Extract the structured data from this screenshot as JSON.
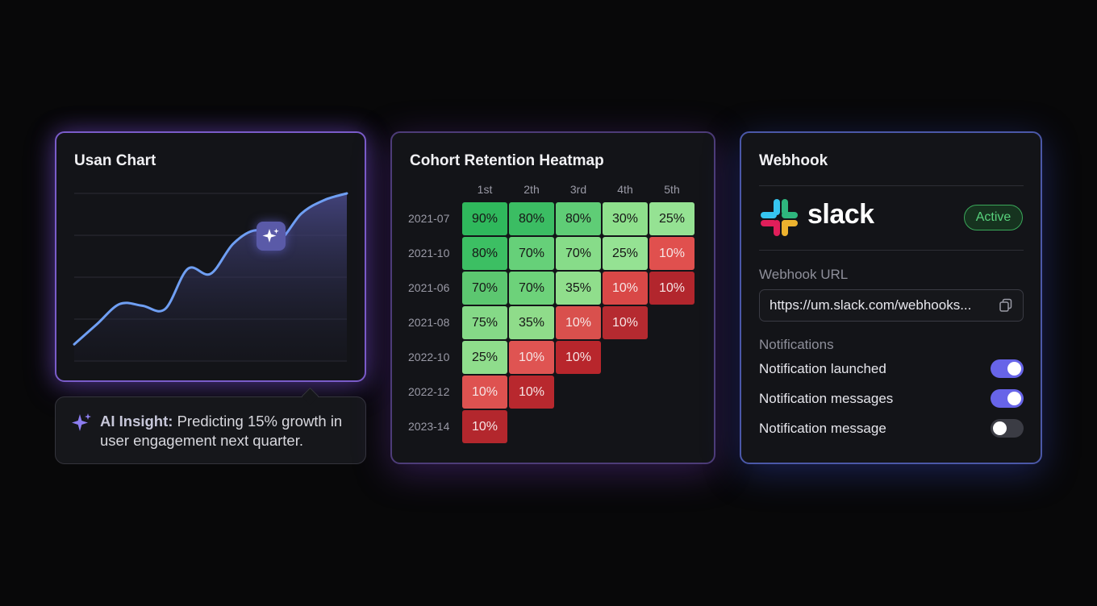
{
  "usage_card": {
    "title": "Usan Chart",
    "chart_data": {
      "type": "area",
      "x": [
        0,
        1,
        2,
        3,
        4,
        5,
        6,
        7,
        8,
        9,
        10,
        11,
        12
      ],
      "values": [
        10,
        22,
        34,
        33,
        31,
        55,
        52,
        70,
        78,
        72,
        88,
        96,
        100
      ],
      "ylim": [
        0,
        100
      ],
      "grid": true,
      "line_color": "#6f9ff3",
      "fill_color": "#3a3a6e"
    },
    "marker_icon": "sparkle-icon"
  },
  "insight": {
    "icon": "sparkle-icon",
    "label": "AI Insight:",
    "text": "Predicting 15% growth in user engagement next quarter."
  },
  "heatmap_card": {
    "title": "Cohort Retention Heatmap",
    "chart_data": {
      "type": "heatmap",
      "columns": [
        "1st",
        "2th",
        "3rd",
        "4th",
        "5th"
      ],
      "rows": [
        {
          "label": "2021-07",
          "values": [
            "90%",
            "80%",
            "80%",
            "30%",
            "25%"
          ]
        },
        {
          "label": "2021-10",
          "values": [
            "80%",
            "70%",
            "70%",
            "25%",
            "10%"
          ]
        },
        {
          "label": "2021-06",
          "values": [
            "70%",
            "70%",
            "35%",
            "10%",
            "10%"
          ]
        },
        {
          "label": "2021-08",
          "values": [
            "75%",
            "35%",
            "10%",
            "10%"
          ]
        },
        {
          "label": "2022-10",
          "values": [
            "25%",
            "10%",
            "10%"
          ]
        },
        {
          "label": "2022-12",
          "values": [
            "10%",
            "10%"
          ]
        },
        {
          "label": "2023-14",
          "values": [
            "10%"
          ]
        }
      ],
      "cell_colors": [
        [
          "#2fb85c",
          "#3bbd63",
          "#5fcd76",
          "#8ee08c",
          "#95e293"
        ],
        [
          "#3cbf63",
          "#66d079",
          "#87dc89",
          "#95e293",
          "#e0504e"
        ],
        [
          "#5cc770",
          "#6dd27a",
          "#90de8c",
          "#d94847",
          "#b2262d"
        ],
        [
          "#85d987",
          "#8fdc8a",
          "#d9504d",
          "#b52a30"
        ],
        [
          "#8fdd8c",
          "#df5452",
          "#b8262c"
        ],
        [
          "#de5250",
          "#b8282e"
        ],
        [
          "#b3272d"
        ]
      ]
    }
  },
  "webhook_card": {
    "title": "Webhook",
    "brand": "slack",
    "brand_icon": "slack-logo-icon",
    "status": "Active",
    "url_label": "Webhook URL",
    "url_value": "https://um.slack.com/webhooks...",
    "copy_icon": "copy-icon",
    "notifications_label": "Notifications",
    "notifications": [
      {
        "label": "Notification launched",
        "enabled": true
      },
      {
        "label": "Notification messages",
        "enabled": true
      },
      {
        "label": "Notification message",
        "enabled": false
      }
    ]
  }
}
